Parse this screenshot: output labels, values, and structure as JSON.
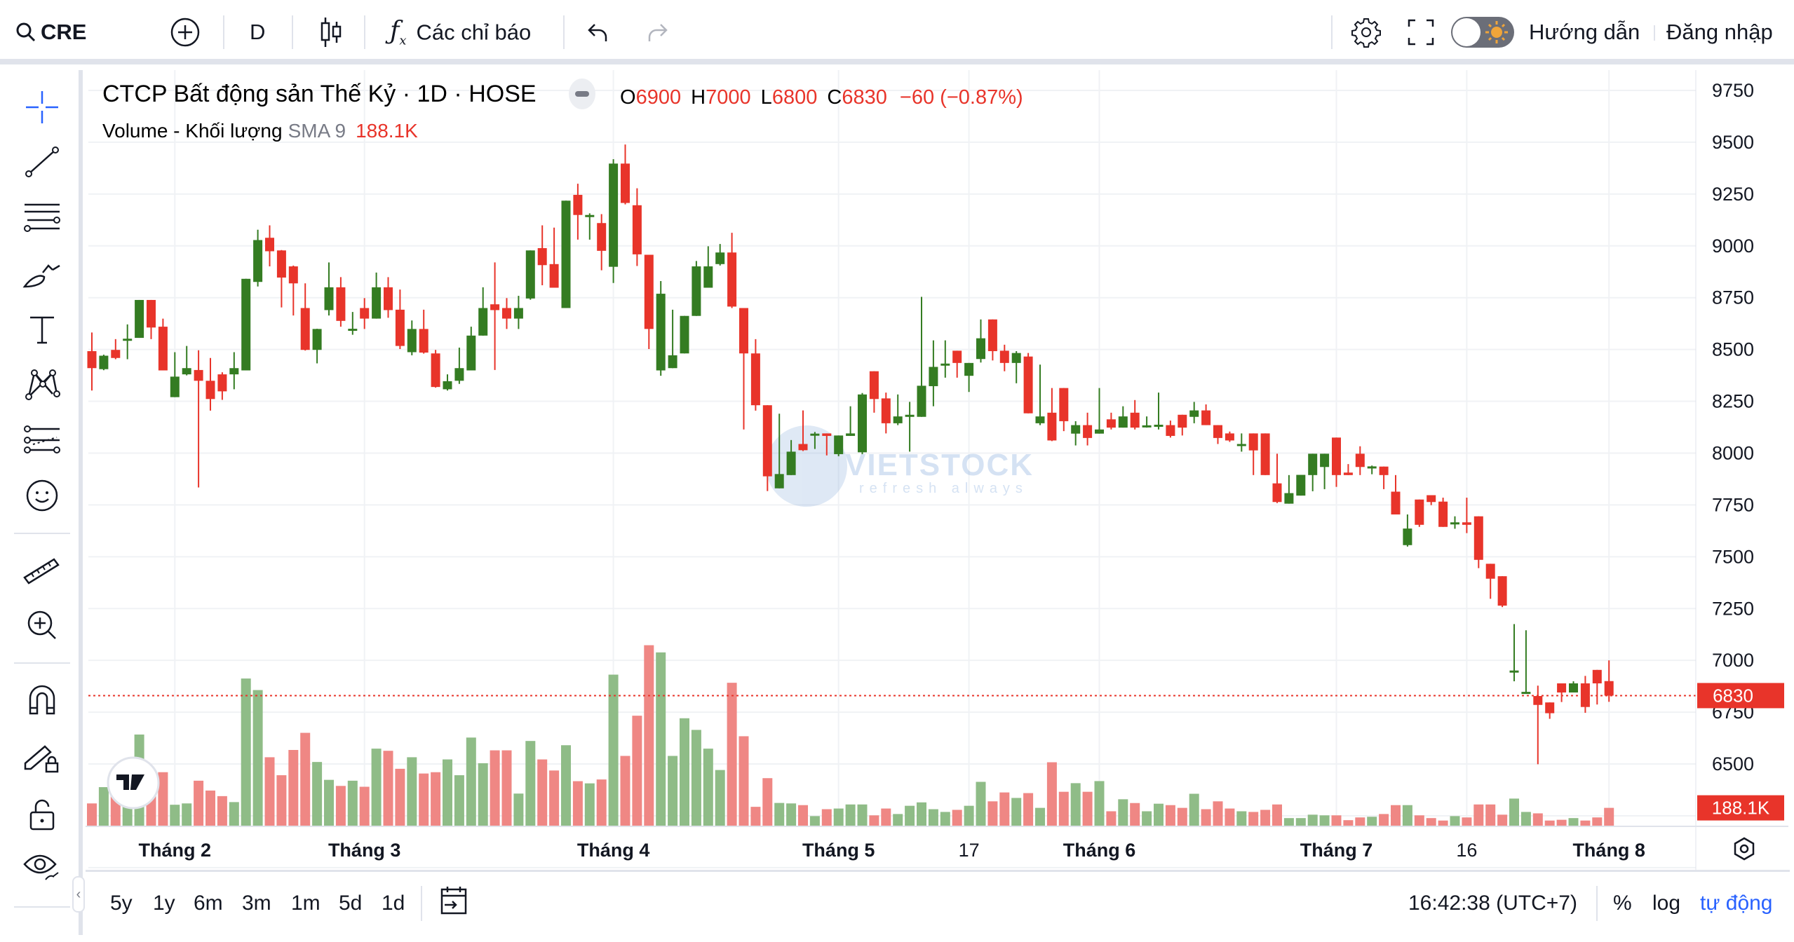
{
  "topbar": {
    "symbol": "CRE",
    "interval": "D",
    "indicators_label": "Các chỉ báo",
    "guide_label": "Hướng dẫn",
    "login_label": "Đăng nhập"
  },
  "legend": {
    "title": "CTCP Bất động sản Thế Kỷ · 1D · HOSE",
    "o_label": "O",
    "o": "6900",
    "h_label": "H",
    "h": "7000",
    "l_label": "L",
    "l": "6800",
    "c_label": "C",
    "c": "6830",
    "change": "−60 (−0.87%)",
    "volume_label": "Volume - Khối lượng",
    "sma_label": "SMA 9",
    "volume_value": "188.1K"
  },
  "watermark": {
    "brand": "VIETSTOCK",
    "tagline": "refresh always"
  },
  "bottombar": {
    "ranges": [
      "5y",
      "1y",
      "6m",
      "3m",
      "1m",
      "5d",
      "1d"
    ],
    "clock": "16:42:38 (UTC+7)",
    "percent": "%",
    "log": "log",
    "auto": "tự động"
  },
  "colors": {
    "up": "#347c22",
    "down": "#e8342a",
    "vol_up": "#8fbc87",
    "vol_down": "#ef8784",
    "auto": "#2962ff",
    "crosshair": "#2962ff"
  },
  "chart_data": {
    "type": "candlestick",
    "symbol": "CRE",
    "ylim": [
      6250,
      9800
    ],
    "yticks": [
      9750,
      9500,
      9250,
      9000,
      8750,
      8500,
      8250,
      8000,
      7750,
      7500,
      7250,
      7000,
      6750,
      6500
    ],
    "last_price": "6830",
    "last_volume": "188.1K",
    "xlabels": [
      {
        "i": 7,
        "label": "Tháng 2"
      },
      {
        "i": 23,
        "label": "Tháng 3"
      },
      {
        "i": 44,
        "label": "Tháng 4"
      },
      {
        "i": 63,
        "label": "Tháng 5"
      },
      {
        "i": 74,
        "label": "17"
      },
      {
        "i": 85,
        "label": "Tháng 6"
      },
      {
        "i": 105,
        "label": "Tháng 7"
      },
      {
        "i": 116,
        "label": "16"
      },
      {
        "i": 128,
        "label": "Tháng 8"
      }
    ],
    "columns": [
      "open",
      "high",
      "low",
      "close",
      "volume_k"
    ],
    "candles": [
      [
        8492,
        8582,
        8302,
        8410,
        235
      ],
      [
        8405,
        8475,
        8400,
        8470,
        407
      ],
      [
        8498,
        8550,
        8453,
        8459,
        339
      ],
      [
        8545,
        8621,
        8453,
        8552,
        294
      ],
      [
        8556,
        8739,
        8556,
        8739,
        963
      ],
      [
        8739,
        8739,
        8550,
        8606,
        429
      ],
      [
        8610,
        8649,
        8399,
        8399,
        565
      ],
      [
        8270,
        8487,
        8270,
        8369,
        221
      ],
      [
        8380,
        8517,
        8375,
        8410,
        235
      ],
      [
        8401,
        8496,
        7834,
        8349,
        475
      ],
      [
        8349,
        8459,
        8205,
        8261,
        371
      ],
      [
        8380,
        8390,
        8257,
        8298,
        312
      ],
      [
        8380,
        8487,
        8308,
        8410,
        249
      ],
      [
        8399,
        8841,
        8399,
        8841,
        1555
      ],
      [
        8826,
        9078,
        8804,
        9028,
        1433
      ],
      [
        9039,
        9099,
        8901,
        8974,
        723
      ],
      [
        8978,
        8980,
        8703,
        8847,
        533
      ],
      [
        8901,
        8905,
        8664,
        8819,
        800
      ],
      [
        8700,
        8819,
        8495,
        8498,
        981
      ],
      [
        8498,
        8600,
        8433,
        8599,
        673
      ],
      [
        8690,
        8920,
        8664,
        8800,
        484
      ],
      [
        8800,
        8849,
        8610,
        8638,
        420
      ],
      [
        8595,
        8681,
        8571,
        8600,
        475
      ],
      [
        8700,
        8748,
        8599,
        8649,
        411
      ],
      [
        8649,
        8871,
        8649,
        8800,
        814
      ],
      [
        8800,
        8849,
        8653,
        8690,
        791
      ],
      [
        8692,
        8789,
        8502,
        8517,
        601
      ],
      [
        8487,
        8640,
        8472,
        8599,
        723
      ],
      [
        8599,
        8692,
        8480,
        8485,
        551
      ],
      [
        8481,
        8498,
        8316,
        8319,
        565
      ],
      [
        8308,
        8380,
        8302,
        8347,
        700
      ],
      [
        8349,
        8509,
        8334,
        8410,
        533
      ],
      [
        8399,
        8610,
        8399,
        8567,
        931
      ],
      [
        8567,
        8800,
        8567,
        8700,
        660
      ],
      [
        8718,
        8920,
        8401,
        8690,
        796
      ],
      [
        8700,
        8748,
        8599,
        8649,
        796
      ],
      [
        8649,
        8759,
        8599,
        8700,
        339
      ],
      [
        8746,
        8978,
        8740,
        8978,
        895
      ],
      [
        8989,
        9099,
        8810,
        8907,
        700
      ],
      [
        8912,
        9088,
        8798,
        8798,
        583
      ],
      [
        8700,
        9218,
        8700,
        9218,
        850
      ],
      [
        9246,
        9300,
        9030,
        9149,
        470
      ],
      [
        9145,
        9157,
        9030,
        9149,
        447
      ],
      [
        9110,
        9153,
        8882,
        8976,
        488
      ],
      [
        8899,
        9418,
        8821,
        9397,
        1596
      ],
      [
        9397,
        9489,
        9200,
        9207,
        737
      ],
      [
        9196,
        9278,
        8903,
        8959,
        1162
      ],
      [
        8957,
        8957,
        8502,
        8599,
        1907
      ],
      [
        8399,
        8830,
        8373,
        8769,
        1831
      ],
      [
        8410,
        8692,
        8410,
        8472,
        737
      ],
      [
        8481,
        8662,
        8481,
        8662,
        1135
      ],
      [
        8662,
        8927,
        8662,
        8901,
        1012
      ],
      [
        8798,
        8998,
        8798,
        8901,
        814
      ],
      [
        8912,
        9009,
        8905,
        8968,
        588
      ],
      [
        8968,
        9063,
        8700,
        8707,
        1510
      ],
      [
        8700,
        8700,
        8114,
        8481,
        945
      ],
      [
        8481,
        8550,
        8205,
        8231,
        199
      ],
      [
        8231,
        8231,
        7817,
        7888,
        502
      ],
      [
        7830,
        8190,
        7830,
        7899,
        240
      ],
      [
        7894,
        8063,
        7894,
        8007,
        235
      ],
      [
        8044,
        8206,
        8010,
        8014,
        217
      ],
      [
        8090,
        8102,
        8020,
        8094,
        101
      ],
      [
        8095,
        8095,
        7989,
        8083,
        174
      ],
      [
        7995,
        8085,
        7985,
        8085,
        181
      ],
      [
        8083,
        8226,
        8083,
        8095,
        224
      ],
      [
        8004,
        8290,
        7995,
        8283,
        224
      ],
      [
        8395,
        8395,
        8195,
        8261,
        109
      ],
      [
        8264,
        8292,
        8095,
        8144,
        181
      ],
      [
        8144,
        8283,
        8135,
        8177,
        123
      ],
      [
        8175,
        8247,
        8007,
        8185,
        210
      ],
      [
        8175,
        8754,
        8175,
        8325,
        246
      ],
      [
        8323,
        8544,
        8226,
        8416,
        174
      ],
      [
        8425,
        8544,
        8364,
        8432,
        145
      ],
      [
        8494,
        8494,
        8364,
        8435,
        167
      ],
      [
        8373,
        8435,
        8295,
        8435,
        210
      ],
      [
        8454,
        8645,
        8437,
        8554,
        463
      ],
      [
        8645,
        8645,
        8447,
        8492,
        257
      ],
      [
        8494,
        8523,
        8395,
        8435,
        351
      ],
      [
        8435,
        8492,
        8337,
        8483,
        293
      ],
      [
        8466,
        8483,
        8192,
        8192,
        344
      ],
      [
        8144,
        8427,
        8135,
        8177,
        188
      ],
      [
        8195,
        8314,
        8058,
        8061,
        670
      ],
      [
        8314,
        8314,
        8106,
        8154,
        358
      ],
      [
        8094,
        8154,
        8037,
        8135,
        449
      ],
      [
        8135,
        8195,
        8037,
        8073,
        358
      ],
      [
        8094,
        8314,
        8094,
        8114,
        471
      ],
      [
        8163,
        8195,
        8114,
        8123,
        152
      ],
      [
        8123,
        8226,
        8123,
        8177,
        279
      ],
      [
        8195,
        8256,
        8114,
        8123,
        239
      ],
      [
        8131,
        8177,
        8123,
        8134,
        152
      ],
      [
        8134,
        8292,
        8114,
        8137,
        232
      ],
      [
        8135,
        8157,
        8075,
        8083,
        217
      ],
      [
        8185,
        8185,
        8085,
        8123,
        188
      ],
      [
        8175,
        8247,
        8144,
        8206,
        337
      ],
      [
        8206,
        8235,
        8135,
        8135,
        174
      ],
      [
        8135,
        8135,
        8044,
        8073,
        257
      ],
      [
        8095,
        8104,
        8054,
        8061,
        181
      ],
      [
        8042,
        8095,
        8007,
        8044,
        152
      ],
      [
        8095,
        8095,
        7894,
        8013,
        145
      ],
      [
        8095,
        8095,
        7894,
        7894,
        167
      ],
      [
        7854,
        7997,
        7759,
        7764,
        224
      ],
      [
        7756,
        7894,
        7756,
        7807,
        80
      ],
      [
        7795,
        7895,
        7795,
        7895,
        80
      ],
      [
        7894,
        7997,
        7816,
        7997,
        116
      ],
      [
        7933,
        7997,
        7826,
        7997,
        109
      ],
      [
        8075,
        8075,
        7837,
        7894,
        109
      ],
      [
        7906,
        7947,
        7894,
        7894,
        58
      ],
      [
        7997,
        8033,
        7894,
        7933,
        87
      ],
      [
        7933,
        7940,
        7898,
        7936,
        94
      ],
      [
        7935,
        7935,
        7826,
        7894,
        123
      ],
      [
        7814,
        7894,
        7704,
        7704,
        217
      ],
      [
        7556,
        7704,
        7549,
        7636,
        217
      ],
      [
        7776,
        7776,
        7644,
        7654,
        109
      ],
      [
        7797,
        7797,
        7749,
        7764,
        80
      ],
      [
        7766,
        7785,
        7644,
        7644,
        54
      ],
      [
        7664,
        7695,
        7635,
        7666,
        101
      ],
      [
        7666,
        7785,
        7614,
        7654,
        87
      ],
      [
        7695,
        7695,
        7445,
        7485,
        224
      ],
      [
        7466,
        7466,
        7297,
        7394,
        224
      ],
      [
        7406,
        7406,
        7257,
        7264,
        116
      ],
      [
        6948,
        7175,
        6899,
        6951,
        286
      ],
      [
        6845,
        7145,
        6844,
        6848,
        145
      ],
      [
        6828,
        6878,
        6499,
        6785,
        130
      ],
      [
        6797,
        6797,
        6718,
        6745,
        54
      ],
      [
        6889,
        6889,
        6799,
        6845,
        62
      ],
      [
        6845,
        6899,
        6845,
        6889,
        80
      ],
      [
        6889,
        6925,
        6747,
        6775,
        54
      ],
      [
        6954,
        6954,
        6787,
        6889,
        87
      ],
      [
        6900,
        7000,
        6800,
        6830,
        188.1
      ]
    ]
  }
}
